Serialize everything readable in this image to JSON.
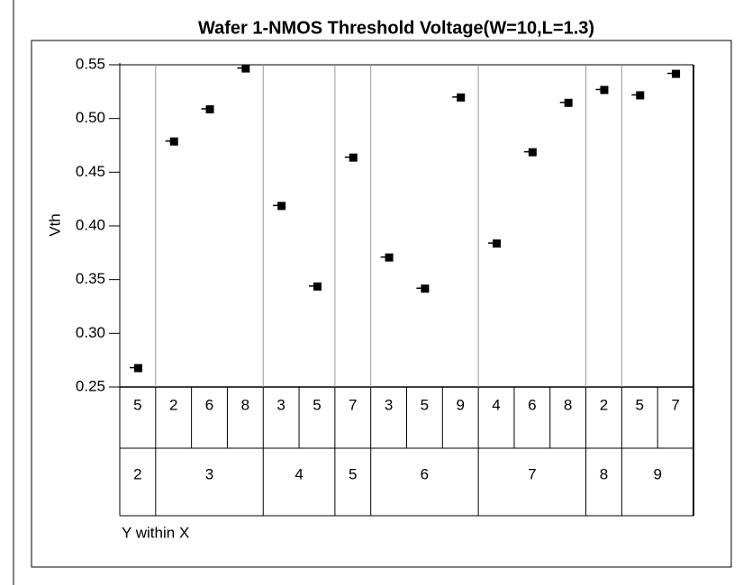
{
  "chart_data": {
    "type": "variability",
    "title": "Wafer 1-NMOS Threshold Voltage(W=10,L=1.3)",
    "y_label": "Vth",
    "x_label": "Y within X",
    "groups": [
      {
        "label": "2",
        "categories": [
          "5"
        ],
        "values": [
          0.268
        ]
      },
      {
        "label": "3",
        "categories": [
          "2",
          "6",
          "8"
        ],
        "values": [
          0.479,
          0.509,
          0.547
        ]
      },
      {
        "label": "4",
        "categories": [
          "3",
          "5"
        ],
        "values": [
          0.419,
          0.344
        ]
      },
      {
        "label": "5",
        "categories": [
          "7"
        ],
        "values": [
          0.464
        ]
      },
      {
        "label": "6",
        "categories": [
          "3",
          "5",
          "9"
        ],
        "values": [
          0.371,
          0.342,
          0.52
        ]
      },
      {
        "label": "7",
        "categories": [
          "4",
          "6",
          "8"
        ],
        "values": [
          0.384,
          0.469,
          0.515
        ]
      },
      {
        "label": "8",
        "categories": [
          "2"
        ],
        "values": [
          0.527
        ]
      },
      {
        "label": "9",
        "categories": [
          "5",
          "7"
        ],
        "values": [
          0.522,
          0.542
        ]
      }
    ],
    "ylim": [
      0.25,
      0.55
    ],
    "yticks": [
      0.25,
      {
        "value": 0.3,
        "label": "0.30"
      },
      0.35,
      {
        "value": 0.4,
        "label": "0.40"
      },
      0.45,
      {
        "value": 0.5,
        "label": "0.50"
      },
      0.55
    ],
    "color": "#000000"
  }
}
